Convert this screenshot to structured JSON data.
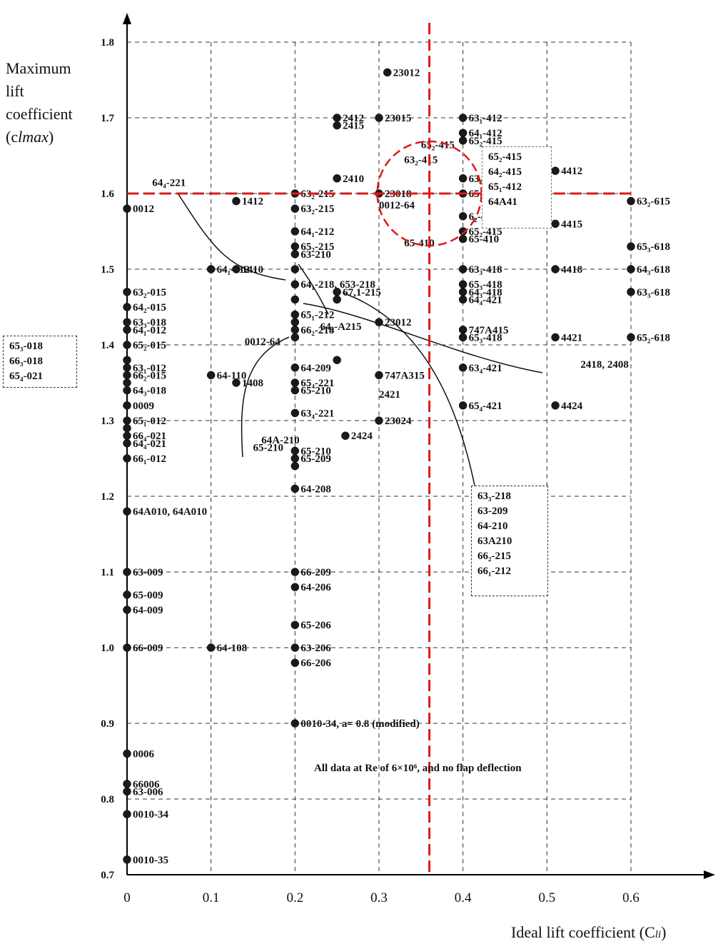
{
  "chart_data": {
    "type": "scatter",
    "xlabel": "Ideal lift coefficient (C",
    "xlabel_sub": "li",
    "xlabel_end": ")",
    "ylabel": "Maximum\nlift\ncoefficient\n(c",
    "ylabel_sub": "lmax",
    "ylabel_end": ")",
    "xlim": [
      0,
      0.6
    ],
    "ylim": [
      0.7,
      1.8
    ],
    "x_ticks": [
      "0",
      "0.1",
      "0.2",
      "0.3",
      "0.4",
      "0.5",
      "0.6"
    ],
    "y_ticks": [
      "0.7",
      "0.8",
      "0.9",
      "1.0",
      "1.1",
      "1.2",
      "1.3",
      "1.4",
      "1.5",
      "1.6",
      "1.7",
      "1.8"
    ],
    "grid": "dashed",
    "note": "All data at Re of 6×10⁶, and no flap deflection",
    "reference_lines": {
      "x": 0.36,
      "y": 1.6,
      "color": "#e01818"
    },
    "points": [
      {
        "x": 0.31,
        "y": 1.76,
        "label": "23012"
      },
      {
        "x": 0.25,
        "y": 1.7,
        "label": "2412"
      },
      {
        "x": 0.25,
        "y": 1.69,
        "label": "2415"
      },
      {
        "x": 0.3,
        "y": 1.7,
        "label": "23015"
      },
      {
        "x": 0.4,
        "y": 1.7,
        "label": "63₁-412"
      },
      {
        "x": 0.4,
        "y": 1.68,
        "label": "64₁-412"
      },
      {
        "x": 0.4,
        "y": 1.67,
        "label": "65₂-415"
      },
      {
        "x": 0.4,
        "y": 1.62,
        "label": "63₂-415"
      },
      {
        "x": 0.51,
        "y": 1.63,
        "label": "4412"
      },
      {
        "x": 0.25,
        "y": 1.62,
        "label": "2410"
      },
      {
        "x": 0.2,
        "y": 1.6,
        "label": "63₂-215"
      },
      {
        "x": 0.3,
        "y": 1.6,
        "label": "23018"
      },
      {
        "x": 0.4,
        "y": 1.6,
        "label": "65₁-412"
      },
      {
        "x": 0.6,
        "y": 1.59,
        "label": "63₂-615"
      },
      {
        "x": 0.0,
        "y": 1.58,
        "label": "0012"
      },
      {
        "x": 0.13,
        "y": 1.59,
        "label": "1412"
      },
      {
        "x": 0.2,
        "y": 1.58,
        "label": "63₂-215"
      },
      {
        "x": 0.4,
        "y": 1.57,
        "label": "6₂-418"
      },
      {
        "x": 0.51,
        "y": 1.56,
        "label": "4415"
      },
      {
        "x": 0.2,
        "y": 1.55,
        "label": "64₁-212"
      },
      {
        "x": 0.4,
        "y": 1.55,
        "label": "65₂-415"
      },
      {
        "x": 0.4,
        "y": 1.54,
        "label": "65-410"
      },
      {
        "x": 0.2,
        "y": 1.53,
        "label": "65₂-215"
      },
      {
        "x": 0.2,
        "y": 1.52,
        "label": "63-210"
      },
      {
        "x": 0.6,
        "y": 1.53,
        "label": "65₃-618"
      },
      {
        "x": 0.1,
        "y": 1.5,
        "label": "64₁-112"
      },
      {
        "x": 0.13,
        "y": 1.5,
        "label": "1410"
      },
      {
        "x": 0.2,
        "y": 1.5,
        "label": ""
      },
      {
        "x": 0.4,
        "y": 1.5,
        "label": "63₃-418"
      },
      {
        "x": 0.51,
        "y": 1.5,
        "label": "4418"
      },
      {
        "x": 0.6,
        "y": 1.5,
        "label": "64₃-618"
      },
      {
        "x": 0.2,
        "y": 1.48,
        "label": "64₁-218, 653-218"
      },
      {
        "x": 0.4,
        "y": 1.48,
        "label": "65₃-418"
      },
      {
        "x": 0.4,
        "y": 1.47,
        "label": "64₃-418"
      },
      {
        "x": 0.6,
        "y": 1.47,
        "label": "63₃-618"
      },
      {
        "x": 0.0,
        "y": 1.47,
        "label": "63₂-015"
      },
      {
        "x": 0.25,
        "y": 1.47,
        "label": "67,1-215"
      },
      {
        "x": 0.25,
        "y": 1.46,
        "label": ""
      },
      {
        "x": 0.2,
        "y": 1.46,
        "label": ""
      },
      {
        "x": 0.0,
        "y": 1.45,
        "label": "64₂-015"
      },
      {
        "x": 0.4,
        "y": 1.46,
        "label": "64₄-421"
      },
      {
        "x": 0.2,
        "y": 1.44,
        "label": "65₁-212"
      },
      {
        "x": 0.0,
        "y": 1.43,
        "label": "63₃-018"
      },
      {
        "x": 0.3,
        "y": 1.43,
        "label": "23012"
      },
      {
        "x": 0.2,
        "y": 1.43,
        "label": ""
      },
      {
        "x": 0.0,
        "y": 1.42,
        "label": "64₁-012"
      },
      {
        "x": 0.4,
        "y": 1.42,
        "label": "747A415"
      },
      {
        "x": 0.2,
        "y": 1.42,
        "label": "66₂-218"
      },
      {
        "x": 0.2,
        "y": 1.41,
        "label": ""
      },
      {
        "x": 0.4,
        "y": 1.41,
        "label": "65₃-418"
      },
      {
        "x": 0.51,
        "y": 1.41,
        "label": "4421"
      },
      {
        "x": 0.6,
        "y": 1.41,
        "label": "65₂-618"
      },
      {
        "x": 0.0,
        "y": 1.4,
        "label": "65₂-015"
      },
      {
        "x": 0.0,
        "y": 1.38,
        "label": ""
      },
      {
        "x": 0.0,
        "y": 1.37,
        "label": "63₁-012"
      },
      {
        "x": 0.0,
        "y": 1.36,
        "label": "66₂-015"
      },
      {
        "x": 0.2,
        "y": 1.37,
        "label": "64-209"
      },
      {
        "x": 0.25,
        "y": 1.38,
        "label": ""
      },
      {
        "x": 0.3,
        "y": 1.36,
        "label": "747A315"
      },
      {
        "x": 0.4,
        "y": 1.37,
        "label": "63₄-421"
      },
      {
        "x": 0.1,
        "y": 1.36,
        "label": "64-110"
      },
      {
        "x": 0.13,
        "y": 1.35,
        "label": "1408"
      },
      {
        "x": 0.0,
        "y": 1.35,
        "label": ""
      },
      {
        "x": 0.2,
        "y": 1.35,
        "label": "65₄-221"
      },
      {
        "x": 0.0,
        "y": 1.34,
        "label": "64₃-018"
      },
      {
        "x": 0.2,
        "y": 1.34,
        "label": "65-210"
      },
      {
        "x": 0.0,
        "y": 1.32,
        "label": "0009"
      },
      {
        "x": 0.4,
        "y": 1.32,
        "label": "65₄-421"
      },
      {
        "x": 0.51,
        "y": 1.32,
        "label": "4424"
      },
      {
        "x": 0.2,
        "y": 1.31,
        "label": "63₄-221"
      },
      {
        "x": 0.3,
        "y": 1.3,
        "label": "23024"
      },
      {
        "x": 0.0,
        "y": 1.3,
        "label": "65₁-012"
      },
      {
        "x": 0.0,
        "y": 1.29,
        "label": ""
      },
      {
        "x": 0.26,
        "y": 1.28,
        "label": "2424"
      },
      {
        "x": 0.0,
        "y": 1.28,
        "label": "66₄-021"
      },
      {
        "x": 0.0,
        "y": 1.27,
        "label": "64₄-021"
      },
      {
        "x": 0.2,
        "y": 1.26,
        "label": "65-210"
      },
      {
        "x": 0.2,
        "y": 1.25,
        "label": "65-209"
      },
      {
        "x": 0.2,
        "y": 1.24,
        "label": ""
      },
      {
        "x": 0.0,
        "y": 1.25,
        "label": "66₁-012"
      },
      {
        "x": 0.2,
        "y": 1.21,
        "label": "64-208"
      },
      {
        "x": 0.0,
        "y": 1.18,
        "label": "64A010, 64A010"
      },
      {
        "x": 0.0,
        "y": 1.1,
        "label": "63-009"
      },
      {
        "x": 0.2,
        "y": 1.1,
        "label": "66-209"
      },
      {
        "x": 0.2,
        "y": 1.08,
        "label": "64-206"
      },
      {
        "x": 0.0,
        "y": 1.07,
        "label": "65-009"
      },
      {
        "x": 0.0,
        "y": 1.05,
        "label": "64-009"
      },
      {
        "x": 0.2,
        "y": 1.03,
        "label": "65-206"
      },
      {
        "x": 0.0,
        "y": 1.0,
        "label": "66-009"
      },
      {
        "x": 0.1,
        "y": 1.0,
        "label": "64-108"
      },
      {
        "x": 0.2,
        "y": 1.0,
        "label": "63-206"
      },
      {
        "x": 0.2,
        "y": 0.98,
        "label": "66-206"
      },
      {
        "x": 0.2,
        "y": 0.9,
        "label": "0010-34, a= 0.8 (modified)"
      },
      {
        "x": 0.0,
        "y": 0.86,
        "label": "0006"
      },
      {
        "x": 0.0,
        "y": 0.82,
        "label": "66006"
      },
      {
        "x": 0.0,
        "y": 0.81,
        "label": "63-006"
      },
      {
        "x": 0.0,
        "y": 0.78,
        "label": "0010-34"
      },
      {
        "x": 0.0,
        "y": 0.72,
        "label": "0010-35"
      }
    ],
    "free_labels": [
      {
        "x": 0.35,
        "y": 1.66,
        "label": "65₂-415"
      },
      {
        "x": 0.33,
        "y": 1.64,
        "label": "63₂-415"
      },
      {
        "x": 0.03,
        "y": 1.61,
        "label": "64₄-221"
      },
      {
        "x": 0.3,
        "y": 1.58,
        "label": "0012-64"
      },
      {
        "x": 0.14,
        "y": 1.4,
        "label": "0012-64"
      },
      {
        "x": 0.33,
        "y": 1.53,
        "label": "65-410"
      },
      {
        "x": 0.23,
        "y": 1.42,
        "label": "64₂-A215"
      },
      {
        "x": 0.54,
        "y": 1.37,
        "label": "2418, 2408"
      },
      {
        "x": 0.3,
        "y": 1.33,
        "label": "2421"
      },
      {
        "x": 0.16,
        "y": 1.27,
        "label": "64A-210"
      },
      {
        "x": 0.15,
        "y": 1.26,
        "label": "65-210"
      }
    ]
  },
  "boxes": {
    "left": [
      "65₃-018",
      "66₃-018",
      "65₄-021"
    ],
    "right": [
      "63₃-218",
      "63-209",
      "64-210",
      "63A210",
      "66₂-215",
      "66₁-212"
    ],
    "top": [
      "65₂-415",
      "64₂-415",
      "65₁-412",
      "64A41"
    ]
  }
}
